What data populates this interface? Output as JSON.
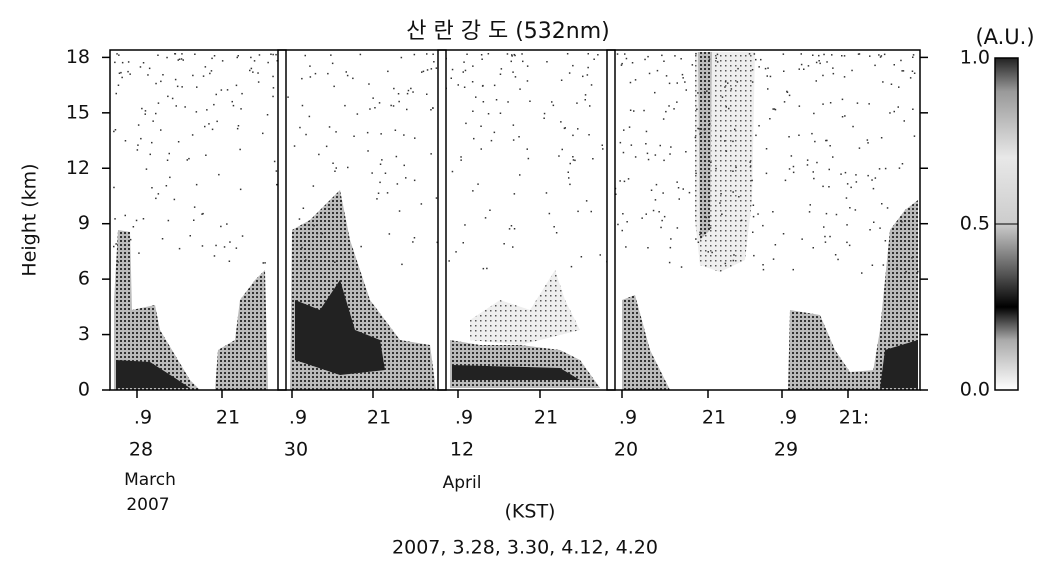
{
  "chart_data": {
    "type": "lidar",
    "title": "산 란 강 도 (532nm)",
    "y_label": "Height (km)",
    "ylim": [
      0,
      18.4
    ],
    "yticks": [
      0,
      3,
      6,
      9,
      12,
      15,
      18
    ],
    "colorbar": {
      "label": "(A.U.)",
      "lim": [
        0,
        1
      ],
      "ticks": [
        {
          "value": 0,
          "label": "0.0"
        },
        {
          "value": 0.5,
          "label": "0.5"
        },
        {
          "value": 1,
          "label": "1.0"
        }
      ]
    },
    "x_tick_labels": [
      ".9",
      "21",
      ".9",
      "21",
      ".9",
      "21",
      ".9",
      "21",
      ".9",
      "21:"
    ],
    "dates": [
      "28",
      "30",
      "12",
      "20",
      "29"
    ],
    "months": [
      "March",
      "April"
    ],
    "year": "2007",
    "x_label": "(KST)",
    "caption": "2007, 3.28, 3.30, 4.12, 4.20"
  }
}
